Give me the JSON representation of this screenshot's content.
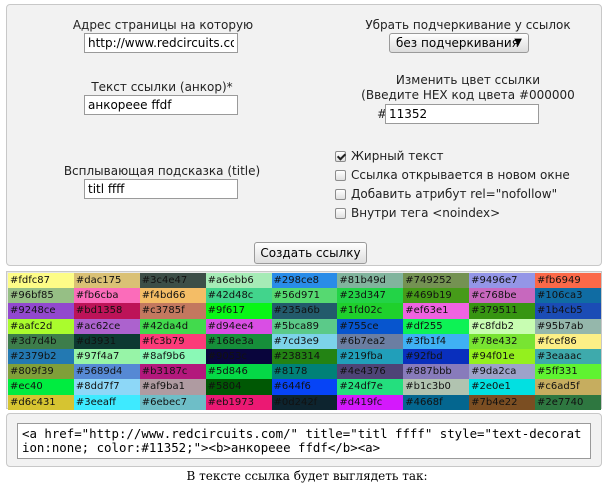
{
  "form": {
    "url_label": "Адрес страницы на которую ссылаетесь*",
    "url_value": "http://www.redcircuits.com",
    "underline_label": "Убрать подчеркивание у ссылок",
    "underline_value": "без подчеркивания",
    "anchor_label": "Текст ссылки (анкор)*",
    "anchor_value": "анкорееe ffdf",
    "color_label_line1": "Изменить цвет ссылки",
    "color_label_line2": "(Введите HEX код цвета #000000",
    "color_prefix": "#",
    "color_value": "11352",
    "title_label": "Всплывающая подсказка (title)",
    "title_value": "titl ffff",
    "checkboxes": [
      {
        "label": "Жирный текст",
        "checked": true
      },
      {
        "label": "Ссылка открывается в новом окне",
        "checked": false
      },
      {
        "label": "Добавить атрибут rel=\"nofollow\"",
        "checked": false
      },
      {
        "label": "Внутри тега <noindex>",
        "checked": false
      }
    ],
    "submit_label": "Создать ссылку"
  },
  "palette": [
    "#fdfc87",
    "#dac175",
    "#3c4e47",
    "#a6ebb6",
    "#298ce8",
    "#81b49d",
    "#749252",
    "#9496e7",
    "#fb6949",
    "#96bf85",
    "#fb6cba",
    "#f4bd66",
    "#42d48c",
    "#56d971",
    "#23d347",
    "#469b19",
    "#c768be",
    "#106ca3",
    "#9248ce",
    "#bd1358",
    "#c3785f",
    "#9f617",
    "#235a6b",
    "#1fd02c",
    "#ef63e1",
    "#379511",
    "#1b4cb5",
    "#aafc2d",
    "#ac62ce",
    "#42da4d",
    "#d94ee4",
    "#5bca89",
    "#755ce",
    "#df255",
    "#c8fdb2",
    "#95b7ab",
    "#3d7d4b",
    "#d3931",
    "#fc3b79",
    "#168e3a",
    "#7cd3e9",
    "#6b7ea2",
    "#3fb1f4",
    "#78e432",
    "#fcef86",
    "#2379b2",
    "#97f4a7",
    "#8af9b6",
    "#9053c",
    "#238314",
    "#219fba",
    "#92fbd",
    "#94f01e",
    "#3eaaac",
    "#809f39",
    "#5689d4",
    "#b3187c",
    "#5d846",
    "#8178",
    "#4e4376",
    "#887bbb",
    "#9da2ca",
    "#5ff331",
    "#ec40",
    "#8dd7f7",
    "#af9ba1",
    "#5804",
    "#644f6",
    "#24df7e",
    "#b1c3b0",
    "#2e0e1",
    "#c6ad5f",
    "#d6c431",
    "#3eeaff",
    "#6ebec7",
    "#eb1973",
    "#0d242f",
    "#d419fc",
    "#4668f",
    "#7b4e22",
    "#2e7740"
  ],
  "output": {
    "code": "<a href=\"http://www.redcircuits.com/\" title=\"titl ffff\" style=\"text-decoration:none; color:#11352;\"><b>анкорееe ffdf</b><a>"
  },
  "preview": {
    "caption": "В тексте ссылка будет выглядеть так:"
  }
}
